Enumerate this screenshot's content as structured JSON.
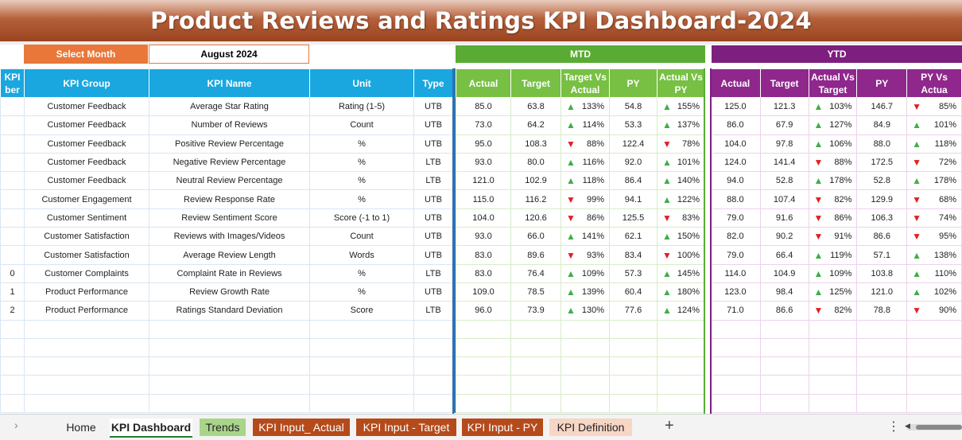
{
  "title": "Product Reviews and Ratings KPI Dashboard-2024",
  "select_month": {
    "label": "Select Month",
    "value": "August 2024"
  },
  "sections": {
    "mtd": "MTD",
    "ytd": "YTD"
  },
  "left_headers": {
    "num_line1": "KPI",
    "num_line2": "ber",
    "group": "KPI Group",
    "name": "KPI Name",
    "unit": "Unit",
    "type": "Type"
  },
  "mtd_headers": {
    "actual": "Actual",
    "target": "Target",
    "tva": "Target Vs Actual",
    "py": "PY",
    "avp": "Actual Vs PY"
  },
  "ytd_headers": {
    "actual": "Actual",
    "target": "Target",
    "avt": "Actual Vs Target",
    "py": "PY",
    "pva": "PY Vs Actua"
  },
  "rows": [
    {
      "num": "",
      "group": "Customer Feedback",
      "name": "Average Star Rating",
      "unit": "Rating (1-5)",
      "type": "UTB",
      "m_actual": "85.0",
      "m_target": "63.8",
      "m_tva_dir": "up",
      "m_tva": "133%",
      "m_py": "54.8",
      "m_avp_dir": "up",
      "m_avp": "155%",
      "y_actual": "125.0",
      "y_target": "121.3",
      "y_avt_dir": "up",
      "y_avt": "103%",
      "y_py": "146.7",
      "y_pva_dir": "down",
      "y_pva": "85%"
    },
    {
      "num": "",
      "group": "Customer Feedback",
      "name": "Number of Reviews",
      "unit": "Count",
      "type": "UTB",
      "m_actual": "73.0",
      "m_target": "64.2",
      "m_tva_dir": "up",
      "m_tva": "114%",
      "m_py": "53.3",
      "m_avp_dir": "up",
      "m_avp": "137%",
      "y_actual": "86.0",
      "y_target": "67.9",
      "y_avt_dir": "up",
      "y_avt": "127%",
      "y_py": "84.9",
      "y_pva_dir": "up",
      "y_pva": "101%"
    },
    {
      "num": "",
      "group": "Customer Feedback",
      "name": "Positive Review Percentage",
      "unit": "%",
      "type": "UTB",
      "m_actual": "95.0",
      "m_target": "108.3",
      "m_tva_dir": "down",
      "m_tva": "88%",
      "m_py": "122.4",
      "m_avp_dir": "down",
      "m_avp": "78%",
      "y_actual": "104.0",
      "y_target": "97.8",
      "y_avt_dir": "up",
      "y_avt": "106%",
      "y_py": "88.0",
      "y_pva_dir": "up",
      "y_pva": "118%"
    },
    {
      "num": "",
      "group": "Customer Feedback",
      "name": "Negative Review Percentage",
      "unit": "%",
      "type": "LTB",
      "m_actual": "93.0",
      "m_target": "80.0",
      "m_tva_dir": "up",
      "m_tva": "116%",
      "m_py": "92.0",
      "m_avp_dir": "up",
      "m_avp": "101%",
      "y_actual": "124.0",
      "y_target": "141.4",
      "y_avt_dir": "down",
      "y_avt": "88%",
      "y_py": "172.5",
      "y_pva_dir": "down",
      "y_pva": "72%"
    },
    {
      "num": "",
      "group": "Customer Feedback",
      "name": "Neutral Review Percentage",
      "unit": "%",
      "type": "LTB",
      "m_actual": "121.0",
      "m_target": "102.9",
      "m_tva_dir": "up",
      "m_tva": "118%",
      "m_py": "86.4",
      "m_avp_dir": "up",
      "m_avp": "140%",
      "y_actual": "94.0",
      "y_target": "52.8",
      "y_avt_dir": "up",
      "y_avt": "178%",
      "y_py": "52.8",
      "y_pva_dir": "up",
      "y_pva": "178%"
    },
    {
      "num": "",
      "group": "Customer Engagement",
      "name": "Review Response Rate",
      "unit": "%",
      "type": "UTB",
      "m_actual": "115.0",
      "m_target": "116.2",
      "m_tva_dir": "down",
      "m_tva": "99%",
      "m_py": "94.1",
      "m_avp_dir": "up",
      "m_avp": "122%",
      "y_actual": "88.0",
      "y_target": "107.4",
      "y_avt_dir": "down",
      "y_avt": "82%",
      "y_py": "129.9",
      "y_pva_dir": "down",
      "y_pva": "68%"
    },
    {
      "num": "",
      "group": "Customer Sentiment",
      "name": "Review Sentiment Score",
      "unit": "Score (-1 to 1)",
      "type": "UTB",
      "m_actual": "104.0",
      "m_target": "120.6",
      "m_tva_dir": "down",
      "m_tva": "86%",
      "m_py": "125.5",
      "m_avp_dir": "down",
      "m_avp": "83%",
      "y_actual": "79.0",
      "y_target": "91.6",
      "y_avt_dir": "down",
      "y_avt": "86%",
      "y_py": "106.3",
      "y_pva_dir": "down",
      "y_pva": "74%"
    },
    {
      "num": "",
      "group": "Customer Satisfaction",
      "name": "Reviews with Images/Videos",
      "unit": "Count",
      "type": "UTB",
      "m_actual": "93.0",
      "m_target": "66.0",
      "m_tva_dir": "up",
      "m_tva": "141%",
      "m_py": "62.1",
      "m_avp_dir": "up",
      "m_avp": "150%",
      "y_actual": "82.0",
      "y_target": "90.2",
      "y_avt_dir": "down",
      "y_avt": "91%",
      "y_py": "86.6",
      "y_pva_dir": "down",
      "y_pva": "95%"
    },
    {
      "num": "",
      "group": "Customer Satisfaction",
      "name": "Average Review Length",
      "unit": "Words",
      "type": "UTB",
      "m_actual": "83.0",
      "m_target": "89.6",
      "m_tva_dir": "down",
      "m_tva": "93%",
      "m_py": "83.4",
      "m_avp_dir": "down",
      "m_avp": "100%",
      "y_actual": "79.0",
      "y_target": "66.4",
      "y_avt_dir": "up",
      "y_avt": "119%",
      "y_py": "57.1",
      "y_pva_dir": "up",
      "y_pva": "138%"
    },
    {
      "num": "0",
      "group": "Customer Complaints",
      "name": "Complaint Rate in Reviews",
      "unit": "%",
      "type": "LTB",
      "m_actual": "83.0",
      "m_target": "76.4",
      "m_tva_dir": "up",
      "m_tva": "109%",
      "m_py": "57.3",
      "m_avp_dir": "up",
      "m_avp": "145%",
      "y_actual": "114.0",
      "y_target": "104.9",
      "y_avt_dir": "up",
      "y_avt": "109%",
      "y_py": "103.8",
      "y_pva_dir": "up",
      "y_pva": "110%"
    },
    {
      "num": "1",
      "group": "Product Performance",
      "name": "Review Growth Rate",
      "unit": "%",
      "type": "UTB",
      "m_actual": "109.0",
      "m_target": "78.5",
      "m_tva_dir": "up",
      "m_tva": "139%",
      "m_py": "60.4",
      "m_avp_dir": "up",
      "m_avp": "180%",
      "y_actual": "123.0",
      "y_target": "98.4",
      "y_avt_dir": "up",
      "y_avt": "125%",
      "y_py": "121.0",
      "y_pva_dir": "up",
      "y_pva": "102%"
    },
    {
      "num": "2",
      "group": "Product Performance",
      "name": "Ratings Standard Deviation",
      "unit": "Score",
      "type": "LTB",
      "m_actual": "96.0",
      "m_target": "73.9",
      "m_tva_dir": "up",
      "m_tva": "130%",
      "m_py": "77.6",
      "m_avp_dir": "up",
      "m_avp": "124%",
      "y_actual": "71.0",
      "y_target": "86.6",
      "y_avt_dir": "down",
      "y_avt": "82%",
      "y_py": "78.8",
      "y_pva_dir": "down",
      "y_pva": "90%"
    }
  ],
  "tabs": [
    {
      "label": "Home"
    },
    {
      "label": "KPI Dashboard"
    },
    {
      "label": "Trends"
    },
    {
      "label": "KPI Input_ Actual"
    },
    {
      "label": "KPI Input - Target"
    },
    {
      "label": "KPI Input - PY"
    },
    {
      "label": "KPI Definition"
    }
  ],
  "colors": {
    "title": "#b5603a",
    "select": "#e9773a",
    "left_header": "#1aa7df",
    "mtd": "#77c043",
    "ytd": "#8f278c",
    "up": "#3fae49",
    "down": "#e02020"
  }
}
